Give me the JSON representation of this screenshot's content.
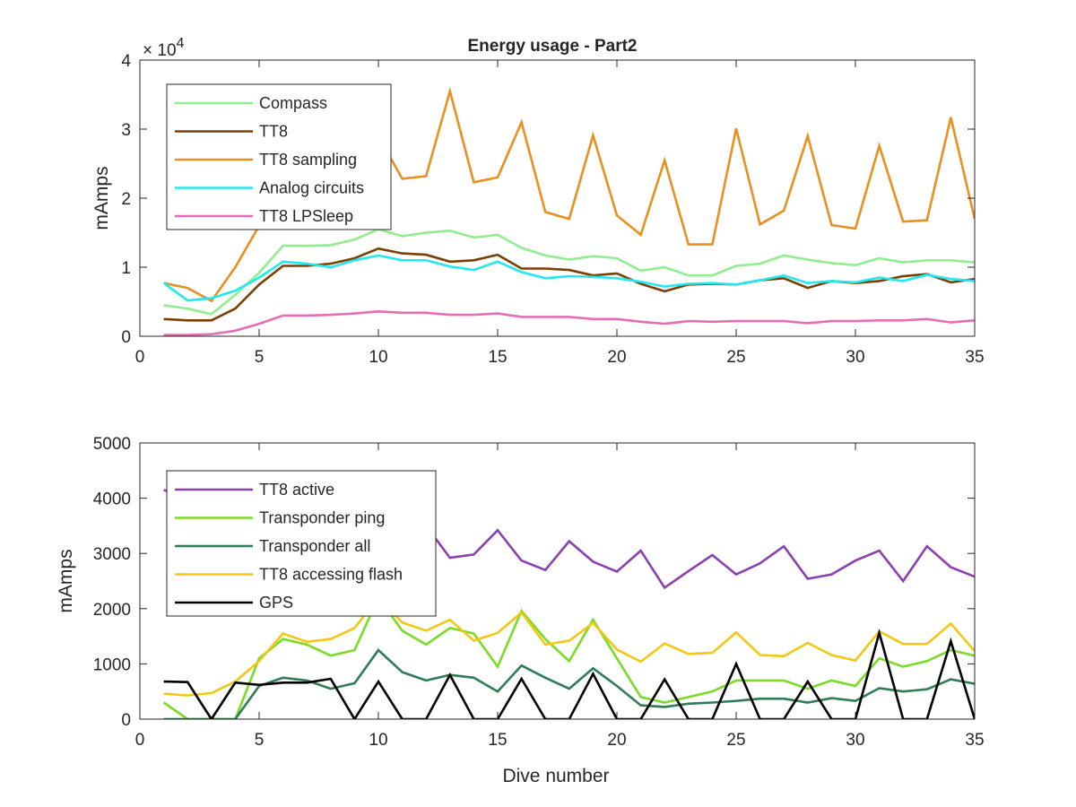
{
  "chart_data": [
    {
      "type": "line",
      "title": "Energy usage - Part2",
      "xlabel": "",
      "ylabel": "mAmps",
      "exponent_label": "× 10",
      "exponent_power": "4",
      "xlim": [
        0,
        35
      ],
      "ylim": [
        0,
        40000
      ],
      "xticks": [
        0,
        5,
        10,
        15,
        20,
        25,
        30,
        35
      ],
      "yticks": [
        0,
        10000,
        20000,
        30000,
        40000
      ],
      "ytick_labels": [
        "0",
        "1",
        "2",
        "3",
        "4"
      ],
      "grid": false,
      "legend_position": "top-left",
      "x": [
        1,
        2,
        3,
        4,
        5,
        6,
        7,
        8,
        9,
        10,
        11,
        12,
        13,
        14,
        15,
        16,
        17,
        18,
        19,
        20,
        21,
        22,
        23,
        24,
        25,
        26,
        27,
        28,
        29,
        30,
        31,
        32,
        33,
        34,
        35
      ],
      "series": [
        {
          "name": "Compass",
          "color": "#90ee90",
          "values": [
            4500,
            4000,
            3200,
            6000,
            9200,
            13100,
            13100,
            13200,
            14000,
            15500,
            14500,
            15000,
            15300,
            14300,
            14700,
            12800,
            11700,
            11100,
            11600,
            11300,
            9500,
            10000,
            8800,
            8800,
            10200,
            10500,
            11700,
            11100,
            10600,
            10300,
            11300,
            10700,
            11000,
            11000,
            10700
          ]
        },
        {
          "name": "TT8",
          "color": "#7b3f00",
          "values": [
            2500,
            2300,
            2300,
            4000,
            7500,
            10200,
            10200,
            10500,
            11300,
            12700,
            12000,
            11800,
            10800,
            11000,
            11800,
            9800,
            9800,
            9600,
            8800,
            9100,
            7600,
            6500,
            7500,
            7600,
            7500,
            8100,
            8400,
            7000,
            8000,
            7700,
            8000,
            8700,
            9000,
            7800,
            8300
          ]
        },
        {
          "name": "TT8 sampling",
          "color": "#e9901f",
          "values": [
            7700,
            7000,
            5100,
            10000,
            16000,
            21000,
            23500,
            24000,
            25000,
            29000,
            22800,
            23200,
            35500,
            22300,
            23000,
            31000,
            18000,
            17000,
            29100,
            17500,
            14700,
            25500,
            13300,
            13300,
            30100,
            16200,
            18200,
            29000,
            16100,
            15600,
            27600,
            16600,
            16800,
            31700,
            17000
          ]
        },
        {
          "name": "Analog circuits",
          "color": "#22e8f0",
          "values": [
            7700,
            5200,
            5500,
            6600,
            8500,
            10800,
            10500,
            10000,
            11000,
            11700,
            11000,
            11000,
            10100,
            9600,
            10800,
            9300,
            8400,
            8700,
            8600,
            8400,
            7900,
            7200,
            7600,
            7700,
            7500,
            8100,
            8800,
            7700,
            8000,
            7800,
            8500,
            8000,
            8900,
            8300,
            8000
          ]
        },
        {
          "name": "TT8 LPSleep",
          "color": "#e66eb4",
          "values": [
            200,
            200,
            300,
            800,
            1800,
            3000,
            3000,
            3100,
            3300,
            3600,
            3400,
            3400,
            3100,
            3100,
            3300,
            2800,
            2800,
            2800,
            2500,
            2500,
            2100,
            1800,
            2200,
            2100,
            2200,
            2200,
            2200,
            1900,
            2200,
            2200,
            2300,
            2300,
            2500,
            2000,
            2300
          ]
        }
      ]
    },
    {
      "type": "line",
      "title": "",
      "xlabel": "Dive number",
      "ylabel": "mAmps",
      "xlim": [
        0,
        35
      ],
      "ylim": [
        0,
        5000
      ],
      "xticks": [
        0,
        5,
        10,
        15,
        20,
        25,
        30,
        35
      ],
      "yticks": [
        0,
        1000,
        2000,
        3000,
        4000,
        5000
      ],
      "ytick_labels": [
        "0",
        "1000",
        "2000",
        "3000",
        "4000",
        "5000"
      ],
      "grid": false,
      "legend_position": "top-left",
      "x": [
        1,
        2,
        3,
        4,
        5,
        6,
        7,
        8,
        9,
        10,
        11,
        12,
        13,
        14,
        15,
        16,
        17,
        18,
        19,
        20,
        21,
        22,
        23,
        24,
        25,
        26,
        27,
        28,
        29,
        30,
        31,
        32,
        33,
        34,
        35
      ],
      "series": [
        {
          "name": "TT8 active",
          "color": "#8b3fb0",
          "values": [
            4150,
            4000,
            3900,
            3700,
            3700,
            3800,
            3800,
            3900,
            3850,
            3950,
            3600,
            3500,
            2920,
            2980,
            3420,
            2870,
            2700,
            3220,
            2850,
            2670,
            3050,
            2380,
            2680,
            2970,
            2620,
            2820,
            3130,
            2540,
            2620,
            2870,
            3050,
            2500,
            3130,
            2750,
            2580
          ]
        },
        {
          "name": "Transponder ping",
          "color": "#7bdc26",
          "values": [
            300,
            0,
            0,
            0,
            1100,
            1450,
            1350,
            1150,
            1250,
            2200,
            1600,
            1350,
            1650,
            1550,
            950,
            1960,
            1450,
            1050,
            1800,
            1100,
            400,
            300,
            400,
            500,
            700,
            700,
            700,
            550,
            700,
            600,
            1100,
            950,
            1050,
            1250,
            1150
          ]
        },
        {
          "name": "Transponder all",
          "color": "#2e7d57",
          "values": [
            0,
            0,
            0,
            0,
            600,
            750,
            700,
            550,
            650,
            1250,
            850,
            700,
            800,
            750,
            500,
            970,
            750,
            550,
            920,
            600,
            250,
            220,
            280,
            300,
            330,
            370,
            370,
            300,
            380,
            330,
            560,
            500,
            540,
            720,
            640
          ]
        },
        {
          "name": "TT8 accessing flash",
          "color": "#f2c813",
          "values": [
            460,
            430,
            470,
            680,
            1050,
            1550,
            1400,
            1450,
            1650,
            2200,
            1750,
            1600,
            1800,
            1420,
            1560,
            1930,
            1350,
            1420,
            1740,
            1260,
            1040,
            1370,
            1180,
            1200,
            1570,
            1160,
            1140,
            1380,
            1160,
            1060,
            1590,
            1360,
            1360,
            1730,
            1230
          ]
        },
        {
          "name": "GPS",
          "color": "#000000",
          "values": [
            680,
            670,
            0,
            660,
            620,
            660,
            660,
            730,
            0,
            680,
            0,
            0,
            800,
            0,
            0,
            730,
            0,
            0,
            820,
            0,
            0,
            720,
            0,
            0,
            1000,
            0,
            0,
            680,
            0,
            0,
            1560,
            0,
            0,
            1410,
            0
          ]
        }
      ]
    }
  ]
}
